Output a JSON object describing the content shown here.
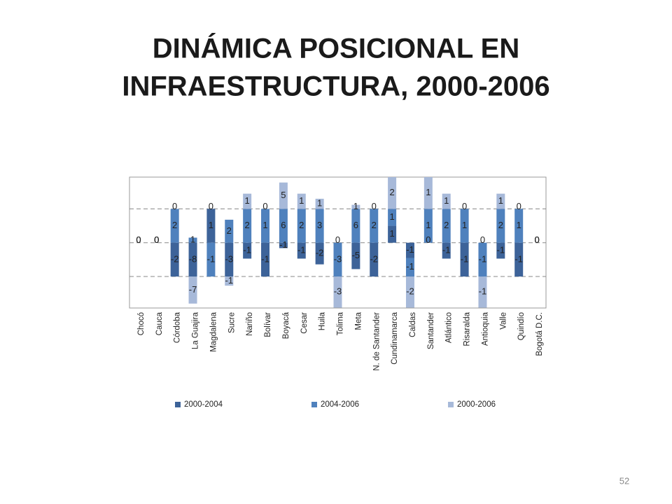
{
  "title_lines": [
    "DINÁMICA POSICIONAL EN",
    "INFRAESTRUCTURA, 2000-2006"
  ],
  "slide_number": "52",
  "chart_data": {
    "type": "stacked-bar",
    "categories": [
      "Chocó",
      "Cauca",
      "Córdoba",
      "La Guajira",
      "Magdalena",
      "Sucre",
      "Nariño",
      "Bolívar",
      "Boyacá",
      "Cesar",
      "Huila",
      "Tolima",
      "Meta",
      "N. de Santander",
      "Cundinamarca",
      "Caldas",
      "Santander",
      "Atlántico",
      "Risaralda",
      "Antioquia",
      "Valle",
      "Quindío",
      "Bogotá D.C."
    ],
    "series": [
      {
        "name": "2000-2004",
        "color": "#3d6399",
        "values": [
          0,
          0,
          -1,
          -1,
          1,
          -1,
          -0.47,
          -1,
          -0.16,
          -0.47,
          -0.64,
          0,
          -0.78,
          -1,
          0.5,
          -0.45,
          0,
          -0.47,
          -1,
          0,
          -0.47,
          -1,
          0
        ],
        "value_labels": [
          "0",
          "0",
          "-2",
          "-8",
          "1",
          "-3",
          "-1",
          "-1",
          "-1",
          "-1",
          "-2",
          "0",
          "-5",
          "-2",
          "1",
          "-1",
          "0",
          "-1",
          "-1",
          "0",
          "-1",
          "-1",
          "0"
        ]
      },
      {
        "name": "2004-2006",
        "color": "#4f81bd",
        "values": [
          0,
          0,
          1,
          0.15,
          -1,
          0.68,
          1,
          1,
          1,
          1,
          1,
          -1,
          1,
          1,
          0.5,
          -0.55,
          1,
          1,
          1,
          -1,
          1,
          1,
          0
        ],
        "value_labels": [
          "0",
          "0",
          "2",
          "1",
          "-1",
          "2",
          "2",
          "1",
          "6",
          "2",
          "3",
          "-3",
          "6",
          "2",
          "1",
          "-1",
          "1",
          "2",
          "1",
          "-1",
          "2",
          "1",
          "0"
        ]
      },
      {
        "name": "2000-2006",
        "color": "#a7b9d9",
        "values": [
          0,
          0,
          0,
          -0.8,
          0,
          -0.27,
          0.45,
          0,
          0.78,
          0.45,
          0.3,
          -0.92,
          0.12,
          0,
          0.94,
          -0.92,
          0.94,
          0.45,
          0,
          -0.92,
          0.45,
          0,
          0
        ],
        "value_labels": [
          "0",
          "0",
          "0",
          "-7",
          "0",
          "-1",
          "1",
          "0",
          "5",
          "1",
          "1",
          "-3",
          "1",
          "0",
          "2",
          "-2",
          "1",
          "1",
          "0",
          "-1",
          "1",
          "0",
          "0"
        ]
      }
    ],
    "ylim": [
      -1.93,
      1.94
    ],
    "yticks": [
      -1,
      0,
      1
    ],
    "grid": true,
    "show_ytick_labels": false,
    "legend": "bottom"
  }
}
